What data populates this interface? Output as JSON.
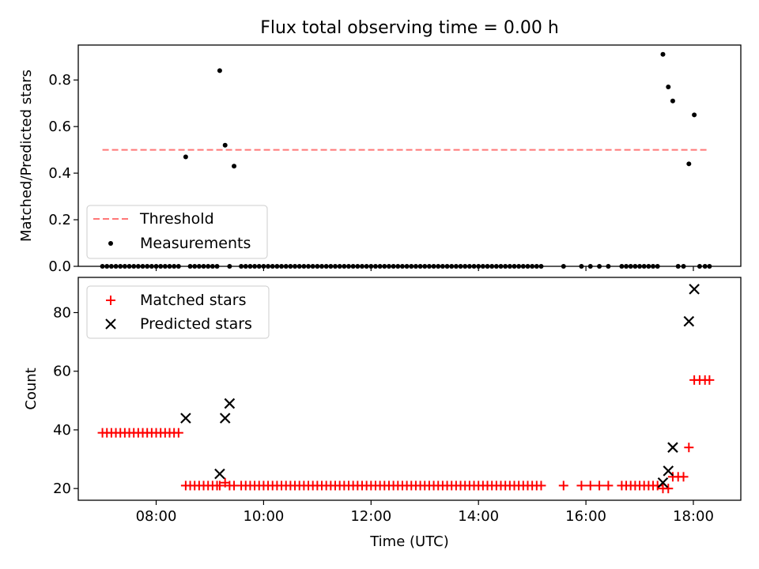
{
  "chart_data": [
    {
      "type": "scatter",
      "title": "Flux total observing time = 0.00 h",
      "xlabel": "",
      "ylabel": "Matched/Predicted stars",
      "xlim": [
        "06:33",
        "18:53"
      ],
      "ylim": [
        0,
        0.95
      ],
      "x_tick_positions": [
        "08:00",
        "10:00",
        "12:00",
        "14:00",
        "16:00",
        "18:00"
      ],
      "y_ticks": [
        0.0,
        0.2,
        0.4,
        0.6,
        0.8
      ],
      "y_tick_labels": [
        "0.0",
        "0.2",
        "0.4",
        "0.6",
        "0.8"
      ],
      "legend_position": "lower-left",
      "threshold": {
        "name": "Threshold",
        "value": 0.5,
        "x_range": [
          "07:00",
          "18:15"
        ],
        "color": "#ff7777",
        "style": "dashed"
      },
      "series": [
        {
          "name": "Measurements",
          "marker": "dot",
          "color": "#000000",
          "x": [
            "07:00",
            "07:05",
            "07:10",
            "07:15",
            "07:20",
            "07:25",
            "07:30",
            "07:35",
            "07:40",
            "07:45",
            "07:50",
            "07:55",
            "08:00",
            "08:05",
            "08:10",
            "08:15",
            "08:20",
            "08:25",
            "08:33",
            "08:38",
            "08:43",
            "08:48",
            "08:53",
            "08:58",
            "09:03",
            "09:08",
            "09:11",
            "09:17",
            "09:22",
            "09:27",
            "09:35",
            "09:40",
            "09:45",
            "09:50",
            "09:55",
            "10:00",
            "10:05",
            "10:10",
            "10:15",
            "10:20",
            "10:25",
            "10:30",
            "10:35",
            "10:40",
            "10:45",
            "10:50",
            "10:55",
            "11:00",
            "11:05",
            "11:10",
            "11:15",
            "11:20",
            "11:25",
            "11:30",
            "11:35",
            "11:40",
            "11:45",
            "11:50",
            "11:55",
            "12:00",
            "12:05",
            "12:10",
            "12:15",
            "12:20",
            "12:25",
            "12:30",
            "12:35",
            "12:40",
            "12:45",
            "12:50",
            "12:55",
            "13:00",
            "13:05",
            "13:10",
            "13:15",
            "13:20",
            "13:25",
            "13:30",
            "13:35",
            "13:40",
            "13:45",
            "13:50",
            "13:55",
            "14:00",
            "14:05",
            "14:10",
            "14:15",
            "14:20",
            "14:25",
            "14:30",
            "14:35",
            "14:40",
            "14:45",
            "14:50",
            "14:55",
            "15:00",
            "15:05",
            "15:10",
            "15:35",
            "15:55",
            "16:05",
            "16:15",
            "16:25",
            "16:40",
            "16:45",
            "16:50",
            "16:55",
            "17:00",
            "17:05",
            "17:10",
            "17:15",
            "17:20",
            "17:26",
            "17:32",
            "17:37",
            "17:43",
            "17:49",
            "17:55",
            "18:01",
            "18:07",
            "18:13",
            "18:18"
          ],
          "y": [
            0,
            0,
            0,
            0,
            0,
            0,
            0,
            0,
            0,
            0,
            0,
            0,
            0,
            0,
            0,
            0,
            0,
            0,
            0.47,
            0,
            0,
            0,
            0,
            0,
            0,
            0,
            0.84,
            0.52,
            0,
            0.43,
            0,
            0,
            0,
            0,
            0,
            0,
            0,
            0,
            0,
            0,
            0,
            0,
            0,
            0,
            0,
            0,
            0,
            0,
            0,
            0,
            0,
            0,
            0,
            0,
            0,
            0,
            0,
            0,
            0,
            0,
            0,
            0,
            0,
            0,
            0,
            0,
            0,
            0,
            0,
            0,
            0,
            0,
            0,
            0,
            0,
            0,
            0,
            0,
            0,
            0,
            0,
            0,
            0,
            0,
            0,
            0,
            0,
            0,
            0,
            0,
            0,
            0,
            0,
            0,
            0,
            0,
            0,
            0,
            0,
            0,
            0,
            0,
            0,
            0,
            0,
            0,
            0,
            0,
            0,
            0,
            0,
            0,
            0.91,
            0.77,
            0.71,
            0,
            0,
            0.44,
            0.65,
            0,
            0,
            0
          ]
        }
      ]
    },
    {
      "type": "scatter",
      "title": "",
      "xlabel": "Time (UTC)",
      "ylabel": "Count",
      "xlim": [
        "06:33",
        "18:53"
      ],
      "ylim": [
        16,
        92
      ],
      "x_ticks": [
        "08:00",
        "10:00",
        "12:00",
        "14:00",
        "16:00",
        "18:00"
      ],
      "y_ticks": [
        20,
        40,
        60,
        80
      ],
      "legend_position": "top-left",
      "series": [
        {
          "name": "Matched stars",
          "marker": "plus",
          "color": "#ff0000",
          "x": [
            "07:00",
            "07:05",
            "07:10",
            "07:15",
            "07:20",
            "07:25",
            "07:30",
            "07:35",
            "07:40",
            "07:45",
            "07:50",
            "07:55",
            "08:00",
            "08:05",
            "08:10",
            "08:15",
            "08:20",
            "08:25",
            "08:33",
            "08:38",
            "08:43",
            "08:48",
            "08:53",
            "08:58",
            "09:03",
            "09:08",
            "09:11",
            "09:17",
            "09:22",
            "09:27",
            "09:35",
            "09:40",
            "09:45",
            "09:50",
            "09:55",
            "10:00",
            "10:05",
            "10:10",
            "10:15",
            "10:20",
            "10:25",
            "10:30",
            "10:35",
            "10:40",
            "10:45",
            "10:50",
            "10:55",
            "11:00",
            "11:05",
            "11:10",
            "11:15",
            "11:20",
            "11:25",
            "11:30",
            "11:35",
            "11:40",
            "11:45",
            "11:50",
            "11:55",
            "12:00",
            "12:05",
            "12:10",
            "12:15",
            "12:20",
            "12:25",
            "12:30",
            "12:35",
            "12:40",
            "12:45",
            "12:50",
            "12:55",
            "13:00",
            "13:05",
            "13:10",
            "13:15",
            "13:20",
            "13:25",
            "13:30",
            "13:35",
            "13:40",
            "13:45",
            "13:50",
            "13:55",
            "14:00",
            "14:05",
            "14:10",
            "14:15",
            "14:20",
            "14:25",
            "14:30",
            "14:35",
            "14:40",
            "14:45",
            "14:50",
            "14:55",
            "15:00",
            "15:05",
            "15:10",
            "15:35",
            "15:55",
            "16:05",
            "16:15",
            "16:25",
            "16:40",
            "16:45",
            "16:50",
            "16:55",
            "17:00",
            "17:05",
            "17:10",
            "17:15",
            "17:20",
            "17:26",
            "17:32",
            "17:37",
            "17:43",
            "17:49",
            "17:55",
            "18:01",
            "18:07",
            "18:13",
            "18:18"
          ],
          "y": [
            39,
            39,
            39,
            39,
            39,
            39,
            39,
            39,
            39,
            39,
            39,
            39,
            39,
            39,
            39,
            39,
            39,
            39,
            21,
            21,
            21,
            21,
            21,
            21,
            21,
            21,
            21,
            22,
            21,
            21,
            21,
            21,
            21,
            21,
            21,
            21,
            21,
            21,
            21,
            21,
            21,
            21,
            21,
            21,
            21,
            21,
            21,
            21,
            21,
            21,
            21,
            21,
            21,
            21,
            21,
            21,
            21,
            21,
            21,
            21,
            21,
            21,
            21,
            21,
            21,
            21,
            21,
            21,
            21,
            21,
            21,
            21,
            21,
            21,
            21,
            21,
            21,
            21,
            21,
            21,
            21,
            21,
            21,
            21,
            21,
            21,
            21,
            21,
            21,
            21,
            21,
            21,
            21,
            21,
            21,
            21,
            21,
            21,
            21,
            21,
            21,
            21,
            21,
            21,
            21,
            21,
            21,
            21,
            21,
            21,
            21,
            21,
            20,
            20,
            24,
            24,
            24,
            34,
            57,
            57,
            57,
            57
          ]
        },
        {
          "name": "Predicted stars",
          "marker": "x",
          "color": "#000000",
          "x": [
            "08:33",
            "09:11",
            "09:17",
            "09:22",
            "17:26",
            "17:32",
            "17:37",
            "17:55",
            "18:01"
          ],
          "y": [
            44,
            25,
            44,
            49,
            22,
            26,
            34,
            77,
            88
          ]
        }
      ]
    }
  ]
}
